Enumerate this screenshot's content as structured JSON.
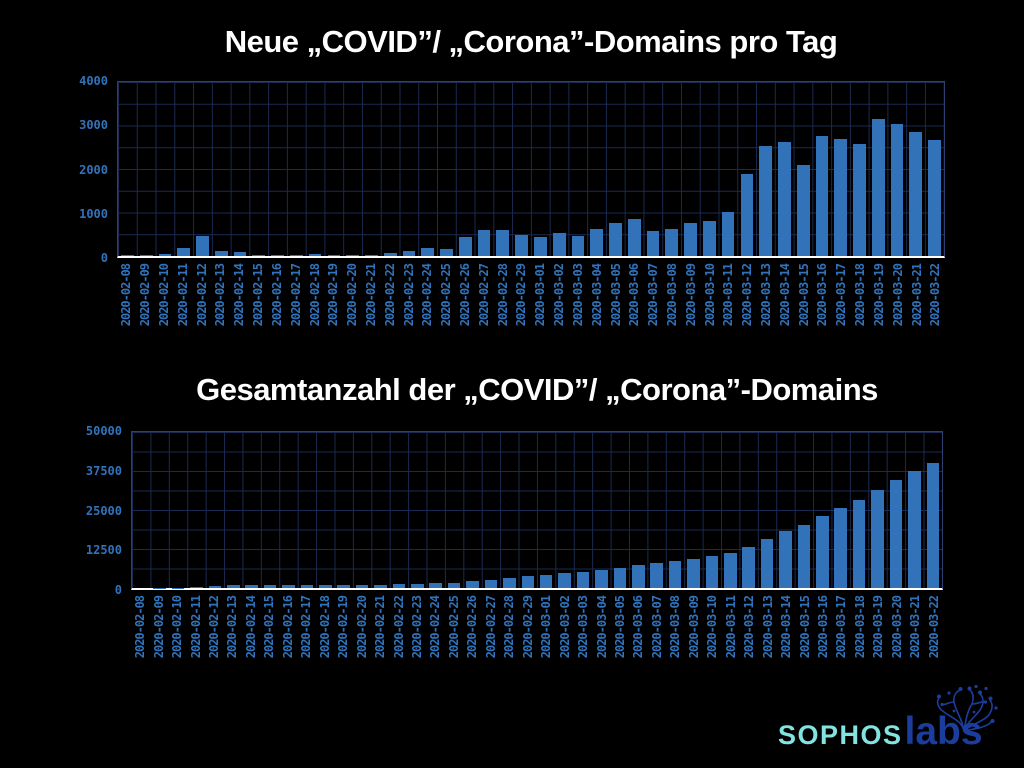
{
  "theme": {
    "background": "#000000",
    "bar_color": "#3272b8",
    "tick_label_color": "#3173bb",
    "grid_color": "#1b2a52",
    "plot_border_color": "#2e4070",
    "axis_line_color": "#ffffff",
    "title_color": "#ffffff",
    "sophos_color": "#82e3e0",
    "labs_color": "#1b3e9e"
  },
  "chart_data": [
    {
      "type": "bar",
      "title": "Neue „COVID”/ „Corona”-Domains pro Tag",
      "xlabel": "",
      "ylabel": "",
      "ylim": [
        0,
        4000
      ],
      "yticks": [
        0,
        1000,
        2000,
        3000,
        4000
      ],
      "grid_y_step": 500,
      "grid": "on",
      "legend_position": "none",
      "bar_color": "#3272b8",
      "categories": [
        "2020-02-08",
        "2020-02-09",
        "2020-02-10",
        "2020-02-11",
        "2020-02-12",
        "2020-02-13",
        "2020-02-14",
        "2020-02-15",
        "2020-02-16",
        "2020-02-17",
        "2020-02-18",
        "2020-02-19",
        "2020-02-20",
        "2020-02-21",
        "2020-02-22",
        "2020-02-23",
        "2020-02-24",
        "2020-02-25",
        "2020-02-26",
        "2020-02-27",
        "2020-02-28",
        "2020-02-29",
        "2020-03-01",
        "2020-03-02",
        "2020-03-03",
        "2020-03-04",
        "2020-03-05",
        "2020-03-06",
        "2020-03-07",
        "2020-03-08",
        "2020-03-09",
        "2020-03-10",
        "2020-03-11",
        "2020-03-12",
        "2020-03-13",
        "2020-03-14",
        "2020-03-15",
        "2020-03-16",
        "2020-03-17",
        "2020-03-18",
        "2020-03-19",
        "2020-03-20",
        "2020-03-21",
        "2020-03-22"
      ],
      "values": [
        20,
        25,
        45,
        190,
        450,
        110,
        90,
        15,
        15,
        30,
        55,
        25,
        25,
        30,
        75,
        115,
        195,
        170,
        440,
        600,
        600,
        480,
        430,
        520,
        460,
        615,
        750,
        840,
        585,
        610,
        750,
        810,
        1020,
        1890,
        2520,
        2610,
        2100,
        2760,
        2680,
        2570,
        3160,
        3030,
        2840,
        2670
      ]
    },
    {
      "type": "bar",
      "title": "Gesamtanzahl der „COVID”/ „Corona”-Domains",
      "xlabel": "",
      "ylabel": "",
      "ylim": [
        0,
        50000
      ],
      "yticks": [
        0,
        12500,
        25000,
        37500,
        50000
      ],
      "grid_y_step": 6250,
      "grid": "on",
      "legend_position": "none",
      "bar_color": "#3272b8",
      "categories": [
        "2020-02-08",
        "2020-02-09",
        "2020-02-10",
        "2020-02-11",
        "2020-02-12",
        "2020-02-13",
        "2020-02-14",
        "2020-02-15",
        "2020-02-16",
        "2020-02-17",
        "2020-02-18",
        "2020-02-19",
        "2020-02-20",
        "2020-02-21",
        "2020-02-22",
        "2020-02-23",
        "2020-02-24",
        "2020-02-25",
        "2020-02-26",
        "2020-02-27",
        "2020-02-28",
        "2020-02-29",
        "2020-03-01",
        "2020-03-02",
        "2020-03-03",
        "2020-03-04",
        "2020-03-05",
        "2020-03-06",
        "2020-03-07",
        "2020-03-08",
        "2020-03-09",
        "2020-03-10",
        "2020-03-11",
        "2020-03-12",
        "2020-03-13",
        "2020-03-14",
        "2020-03-15",
        "2020-03-16",
        "2020-03-17",
        "2020-03-18",
        "2020-03-19",
        "2020-03-20",
        "2020-03-21",
        "2020-03-22"
      ],
      "values": [
        20,
        45,
        90,
        280,
        730,
        840,
        930,
        945,
        960,
        990,
        1045,
        1070,
        1095,
        1125,
        1200,
        1315,
        1510,
        1680,
        2120,
        2720,
        3320,
        3800,
        4230,
        4750,
        5210,
        5825,
        6575,
        7415,
        8000,
        8610,
        9360,
        10170,
        11190,
        13080,
        15600,
        18210,
        20310,
        23070,
        25750,
        28320,
        31480,
        34510,
        37350,
        40020
      ]
    }
  ],
  "logo": {
    "brand": "SOPHOS",
    "suffix": "labs",
    "icon": "brain-network-icon"
  }
}
